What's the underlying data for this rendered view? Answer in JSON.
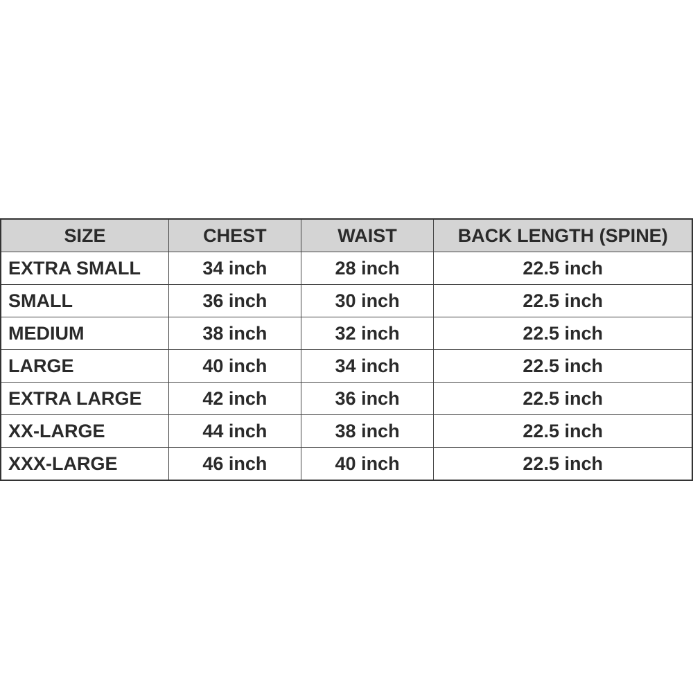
{
  "table": {
    "header": [
      "SIZE",
      "CHEST",
      "WAIST",
      "BACK LENGTH (SPINE)"
    ],
    "rows": [
      [
        "EXTRA SMALL",
        "34 inch",
        "28 inch",
        "22.5 inch"
      ],
      [
        "SMALL",
        "36 inch",
        "30 inch",
        "22.5 inch"
      ],
      [
        "MEDIUM",
        "38 inch",
        "32 inch",
        "22.5 inch"
      ],
      [
        "LARGE",
        "40 inch",
        "34 inch",
        "22.5 inch"
      ],
      [
        "EXTRA LARGE",
        "42 inch",
        "36 inch",
        "22.5 inch"
      ],
      [
        "XX-LARGE",
        "44 inch",
        "38 inch",
        "22.5 inch"
      ],
      [
        "XXX-LARGE",
        "46 inch",
        "40 inch",
        "22.5 inch"
      ]
    ]
  }
}
